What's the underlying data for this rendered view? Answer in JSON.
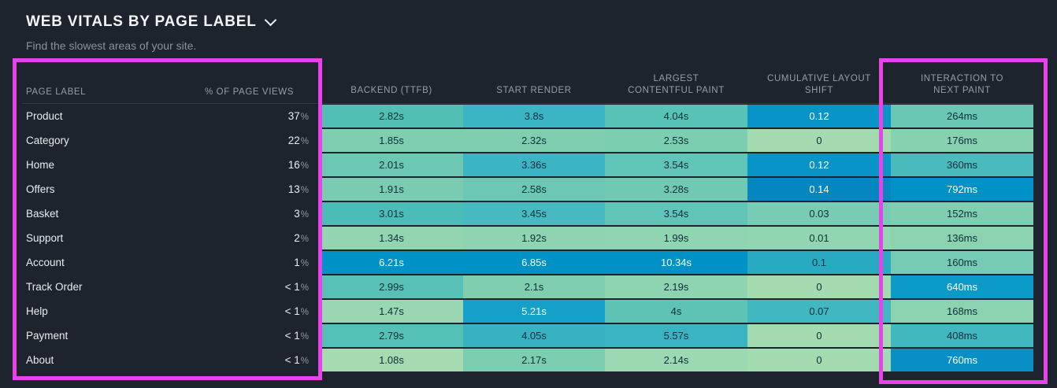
{
  "panel": {
    "title": "WEB VITALS BY PAGE LABEL",
    "subtitle": "Find the slowest areas of your site."
  },
  "table": {
    "headers": {
      "page_label": "PAGE LABEL",
      "page_views": "% OF PAGE VIEWS",
      "metrics": [
        {
          "key": "backend-ttfb",
          "lines": [
            "BACKEND (TTFB)"
          ]
        },
        {
          "key": "start-render",
          "lines": [
            "START RENDER"
          ]
        },
        {
          "key": "largest-contentful-paint",
          "lines": [
            "LARGEST",
            "CONTENTFUL PAINT"
          ]
        },
        {
          "key": "cumulative-layout-shift",
          "lines": [
            "CUMULATIVE LAYOUT",
            "SHIFT"
          ]
        },
        {
          "key": "interaction-to-next-paint",
          "lines": [
            "INTERACTION TO",
            "NEXT PAINT"
          ]
        }
      ]
    },
    "rows": [
      {
        "label": "Product",
        "views": "37%",
        "metrics": [
          {
            "v": "2.82s",
            "c": "#52bfb5",
            "t": "d"
          },
          {
            "v": "3.8s",
            "c": "#3bb4c3",
            "t": "d"
          },
          {
            "v": "4.04s",
            "c": "#58c2b7",
            "t": "d"
          },
          {
            "v": "0.12",
            "c": "#0994c7",
            "t": "l"
          },
          {
            "v": "264ms",
            "c": "#69c7b4",
            "t": "d"
          }
        ]
      },
      {
        "label": "Category",
        "views": "22%",
        "metrics": [
          {
            "v": "1.85s",
            "c": "#7fceb0",
            "t": "d"
          },
          {
            "v": "2.32s",
            "c": "#7fceb0",
            "t": "d"
          },
          {
            "v": "2.53s",
            "c": "#7cceb1",
            "t": "d"
          },
          {
            "v": "0",
            "c": "#a3dab0",
            "t": "d"
          },
          {
            "v": "176ms",
            "c": "#86d1b0",
            "t": "d"
          }
        ]
      },
      {
        "label": "Home",
        "views": "16%",
        "metrics": [
          {
            "v": "2.01s",
            "c": "#6cc8b3",
            "t": "d"
          },
          {
            "v": "3.36s",
            "c": "#3bb4c3",
            "t": "d"
          },
          {
            "v": "3.54s",
            "c": "#60c4b6",
            "t": "d"
          },
          {
            "v": "0.12",
            "c": "#0994c7",
            "t": "l"
          },
          {
            "v": "360ms",
            "c": "#4abbbc",
            "t": "d"
          }
        ]
      },
      {
        "label": "Offers",
        "views": "13%",
        "metrics": [
          {
            "v": "1.91s",
            "c": "#79ccb1",
            "t": "d"
          },
          {
            "v": "2.58s",
            "c": "#6cc8b3",
            "t": "d"
          },
          {
            "v": "3.28s",
            "c": "#70cab3",
            "t": "d"
          },
          {
            "v": "0.14",
            "c": "#0487c1",
            "t": "l"
          },
          {
            "v": "792ms",
            "c": "#0092c6",
            "t": "l"
          }
        ]
      },
      {
        "label": "Basket",
        "views": "3%",
        "metrics": [
          {
            "v": "3.01s",
            "c": "#4bbcb8",
            "t": "d"
          },
          {
            "v": "3.45s",
            "c": "#46bac0",
            "t": "d"
          },
          {
            "v": "3.54s",
            "c": "#60c4b6",
            "t": "d"
          },
          {
            "v": "0.03",
            "c": "#79ccb4",
            "t": "d"
          },
          {
            "v": "152ms",
            "c": "#7fceb2",
            "t": "d"
          }
        ]
      },
      {
        "label": "Support",
        "views": "2%",
        "metrics": [
          {
            "v": "1.34s",
            "c": "#92d5b0",
            "t": "d"
          },
          {
            "v": "1.92s",
            "c": "#8ed4b0",
            "t": "d"
          },
          {
            "v": "1.99s",
            "c": "#90d5b1",
            "t": "d"
          },
          {
            "v": "0.01",
            "c": "#92d5b1",
            "t": "d"
          },
          {
            "v": "136ms",
            "c": "#8bd2b0",
            "t": "d"
          }
        ]
      },
      {
        "label": "Account",
        "views": "1%",
        "metrics": [
          {
            "v": "6.21s",
            "c": "#0092c6",
            "t": "l"
          },
          {
            "v": "6.85s",
            "c": "#0092c6",
            "t": "l"
          },
          {
            "v": "10.34s",
            "c": "#0092c6",
            "t": "l"
          },
          {
            "v": "0.1",
            "c": "#28aac2",
            "t": "d"
          },
          {
            "v": "160ms",
            "c": "#76cbb4",
            "t": "d"
          }
        ]
      },
      {
        "label": "Track Order",
        "views": "< 1%",
        "metrics": [
          {
            "v": "2.99s",
            "c": "#58c1b6",
            "t": "d"
          },
          {
            "v": "2.1s",
            "c": "#7fceb0",
            "t": "d"
          },
          {
            "v": "2.19s",
            "c": "#8ed4b0",
            "t": "d"
          },
          {
            "v": "0",
            "c": "#a3dab0",
            "t": "d"
          },
          {
            "v": "640ms",
            "c": "#0c9bc8",
            "t": "l"
          }
        ]
      },
      {
        "label": "Help",
        "views": "< 1%",
        "metrics": [
          {
            "v": "1.47s",
            "c": "#98d7b2",
            "t": "d"
          },
          {
            "v": "5.21s",
            "c": "#14a0c9",
            "t": "l"
          },
          {
            "v": "4s",
            "c": "#5ec3b4",
            "t": "d"
          },
          {
            "v": "0.07",
            "c": "#41b7c1",
            "t": "d"
          },
          {
            "v": "168ms",
            "c": "#8ad2b0",
            "t": "d"
          }
        ]
      },
      {
        "label": "Payment",
        "views": "< 1%",
        "metrics": [
          {
            "v": "2.79s",
            "c": "#55c0b6",
            "t": "d"
          },
          {
            "v": "4.05s",
            "c": "#37b2c3",
            "t": "d"
          },
          {
            "v": "5.57s",
            "c": "#3ab4c2",
            "t": "d"
          },
          {
            "v": "0",
            "c": "#a3dab0",
            "t": "d"
          },
          {
            "v": "408ms",
            "c": "#41b7c0",
            "t": "d"
          }
        ]
      },
      {
        "label": "About",
        "views": "< 1%",
        "metrics": [
          {
            "v": "1.08s",
            "c": "#a6dab1",
            "t": "d"
          },
          {
            "v": "2.17s",
            "c": "#7cceb1",
            "t": "d"
          },
          {
            "v": "2.14s",
            "c": "#9cd8b2",
            "t": "d"
          },
          {
            "v": "0",
            "c": "#a3dab0",
            "t": "d"
          },
          {
            "v": "760ms",
            "c": "#0890c6",
            "t": "l"
          }
        ]
      }
    ]
  },
  "annotations": {
    "highlight_color": "#ea42ea",
    "highlighted_regions": [
      "page-label-and-page-views-columns",
      "interaction-to-next-paint-column"
    ]
  },
  "colors": {
    "background": "#1e242e",
    "title_text": "#f2f4f6",
    "subtitle_text": "#8b929c",
    "column_header_text": "#959ea8",
    "row_label_text": "#e9ecee",
    "cell_text_dark": "#0d2f3a",
    "cell_text_light": "#ffffff"
  }
}
